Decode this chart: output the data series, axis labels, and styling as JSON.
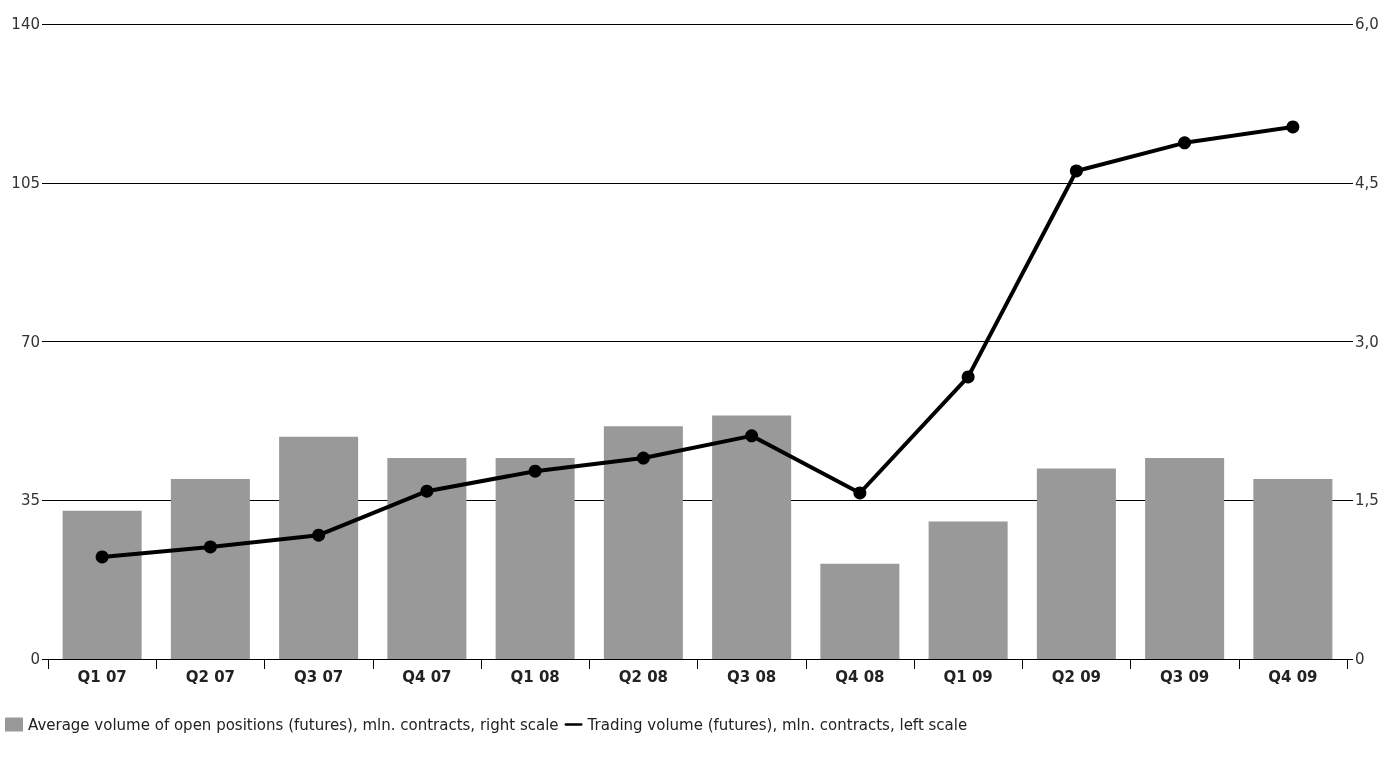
{
  "chart_data": {
    "type": "bar",
    "categories": [
      "Q1 07",
      "Q2 07",
      "Q3 07",
      "Q4 07",
      "Q1 08",
      "Q2 08",
      "Q3 08",
      "Q4 08",
      "Q1 09",
      "Q2 09",
      "Q3 09",
      "Q4 09"
    ],
    "series": [
      {
        "name": "Average volume of open positions (futures), mln. contracts, right scale",
        "axis": "y2",
        "color": "#999999",
        "values": [
          1.4,
          1.7,
          2.1,
          1.9,
          1.9,
          2.2,
          2.3,
          0.9,
          1.3,
          1.8,
          1.9,
          1.7
        ]
      },
      {
        "name": "Trading volume (futures), mln. contracts, left scale",
        "type": "line",
        "axis": "y",
        "color": "#000000",
        "marker": "circle",
        "line_style": "solid",
        "values": [
          22.5,
          24.7,
          27.3,
          37.0,
          41.4,
          44.3,
          49.2,
          36.6,
          62.2,
          107.6,
          113.8,
          117.3
        ]
      }
    ],
    "ylim": [
      0,
      140
    ],
    "yticks": [
      0,
      35,
      70,
      105,
      140
    ],
    "y2lim": [
      0,
      6
    ],
    "y2ticks": [
      0,
      {
        "value": 1.5,
        "label": "1,5"
      },
      {
        "value": 3,
        "label": "3,0"
      },
      {
        "value": 4.5,
        "label": "4,5"
      },
      {
        "value": 6,
        "label": "6,0"
      }
    ],
    "grid": "y",
    "legend": "bottom left"
  }
}
